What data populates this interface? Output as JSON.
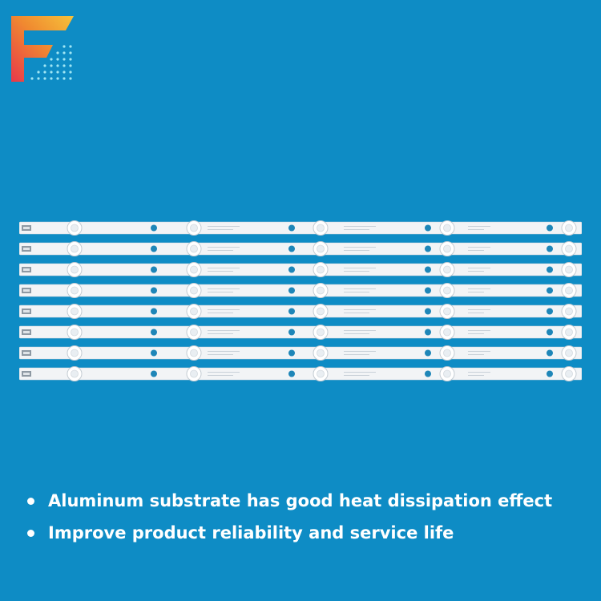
{
  "brand": {
    "logo_icon": "letter-f-logo-icon",
    "gradient_colors": [
      "#E8384A",
      "#F08A30",
      "#F6C23A"
    ],
    "dot_color": "#9FE6F4"
  },
  "product": {
    "strip_count": 8,
    "strip_color": "#F2F4F6",
    "led_lens_count": 5,
    "background_color": "#0E8CC5"
  },
  "features": [
    {
      "text": "Aluminum substrate has good heat dissipation effect"
    },
    {
      "text": "Improve product reliability and service life"
    }
  ]
}
